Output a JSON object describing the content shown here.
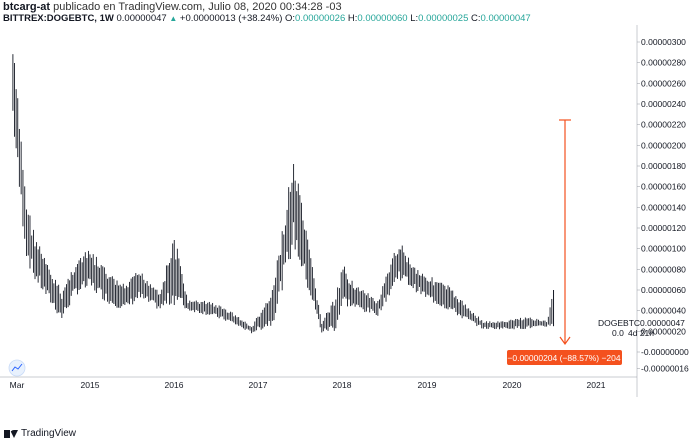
{
  "header": {
    "author": "btcarg-at",
    "published": "publicado en TradingView.com, Julio 08, 2020 00:34:28 -03",
    "symbol": "BITTREX:DOGEBTC, 1W",
    "price": "0.00000047",
    "change": "+0.00000013 (+38.24%)",
    "open_label": "O:",
    "open": "0.00000026",
    "high_label": "H:",
    "high": "0.00000060",
    "low_label": "L:",
    "low": "0.00000025",
    "close_label": "C:",
    "close": "0.00000047"
  },
  "price_axis": {
    "ticks": [
      "0.00000300",
      "0.00000280",
      "0.00000260",
      "0.00000240",
      "0.00000220",
      "0.00000200",
      "0.00000180",
      "0.00000160",
      "0.00000140",
      "0.00000120",
      "0.00000100",
      "0.00000080",
      "0.00000060",
      "0.00000040",
      "0.00000020",
      "-0.00000000",
      "-0.00000016"
    ],
    "symbol_label": "DOGEBTC",
    "last_price": "0.00000047",
    "countdown_partial": "0.0",
    "countdown": "4d 21h"
  },
  "time_axis": {
    "labels": [
      "Mar",
      "2015",
      "2016",
      "2017",
      "2018",
      "2019",
      "2020",
      "2021"
    ]
  },
  "measure": {
    "label": "−0.00000204 (−88.57%) −204",
    "color": "#f4511e"
  },
  "footer": {
    "brand": "TradingView"
  },
  "colors": {
    "candle": "#131722",
    "grid": "#e0e3eb",
    "accent": "#f4511e",
    "up": "#26a69a"
  },
  "chart_data": {
    "type": "candlestick",
    "title": "BITTREX:DOGEBTC, 1W",
    "x_start": "2014-02",
    "x_end": "2020-07",
    "y_unit": "BTC",
    "ylim": [
      -1.6e-07,
      3e-06
    ],
    "points": [
      {
        "x": "2014-02",
        "h": 3e-06,
        "l": 2.2e-06
      },
      {
        "x": "2014-03",
        "h": 2.3e-06,
        "l": 1.5e-06
      },
      {
        "x": "2014-04",
        "h": 1.5e-06,
        "l": 9e-07
      },
      {
        "x": "2014-05",
        "h": 1.2e-06,
        "l": 7e-07
      },
      {
        "x": "2014-07",
        "h": 8.5e-07,
        "l": 5e-07
      },
      {
        "x": "2014-09",
        "h": 6e-07,
        "l": 3e-07
      },
      {
        "x": "2014-11",
        "h": 9e-07,
        "l": 5.5e-07
      },
      {
        "x": "2015-01",
        "h": 1e-06,
        "l": 6e-07
      },
      {
        "x": "2015-04",
        "h": 7.5e-07,
        "l": 4.5e-07
      },
      {
        "x": "2015-06",
        "h": 6.5e-07,
        "l": 4e-07
      },
      {
        "x": "2015-08",
        "h": 8e-07,
        "l": 5e-07
      },
      {
        "x": "2015-11",
        "h": 6e-07,
        "l": 4e-07
      },
      {
        "x": "2016-01",
        "h": 1.15e-06,
        "l": 4.5e-07
      },
      {
        "x": "2016-03",
        "h": 5e-07,
        "l": 4e-07
      },
      {
        "x": "2016-06",
        "h": 5e-07,
        "l": 3.5e-07
      },
      {
        "x": "2016-09",
        "h": 4e-07,
        "l": 2.8e-07
      },
      {
        "x": "2016-12",
        "h": 2.5e-07,
        "l": 1.8e-07
      },
      {
        "x": "2017-03",
        "h": 6e-07,
        "l": 2.5e-07
      },
      {
        "x": "2017-06",
        "h": 1.9e-06,
        "l": 1e-06
      },
      {
        "x": "2017-08",
        "h": 1.1e-06,
        "l": 6e-07
      },
      {
        "x": "2017-10",
        "h": 3e-07,
        "l": 1.8e-07
      },
      {
        "x": "2017-12",
        "h": 5.5e-07,
        "l": 2e-07
      },
      {
        "x": "2018-01",
        "h": 8.5e-07,
        "l": 4.5e-07
      },
      {
        "x": "2018-03",
        "h": 6.5e-07,
        "l": 4e-07
      },
      {
        "x": "2018-06",
        "h": 5e-07,
        "l": 3.5e-07
      },
      {
        "x": "2018-09",
        "h": 1.1e-06,
        "l": 7e-07
      },
      {
        "x": "2018-11",
        "h": 8.5e-07,
        "l": 6e-07
      },
      {
        "x": "2019-01",
        "h": 7.5e-07,
        "l": 5e-07
      },
      {
        "x": "2019-04",
        "h": 6.5e-07,
        "l": 4e-07
      },
      {
        "x": "2019-06",
        "h": 5e-07,
        "l": 3.2e-07
      },
      {
        "x": "2019-09",
        "h": 3e-07,
        "l": 2.2e-07
      },
      {
        "x": "2019-12",
        "h": 3e-07,
        "l": 2.2e-07
      },
      {
        "x": "2020-03",
        "h": 3.5e-07,
        "l": 2.2e-07
      },
      {
        "x": "2020-06",
        "h": 3e-07,
        "l": 2.4e-07
      },
      {
        "x": "2020-07",
        "h": 6e-07,
        "l": 2.5e-07
      }
    ]
  }
}
